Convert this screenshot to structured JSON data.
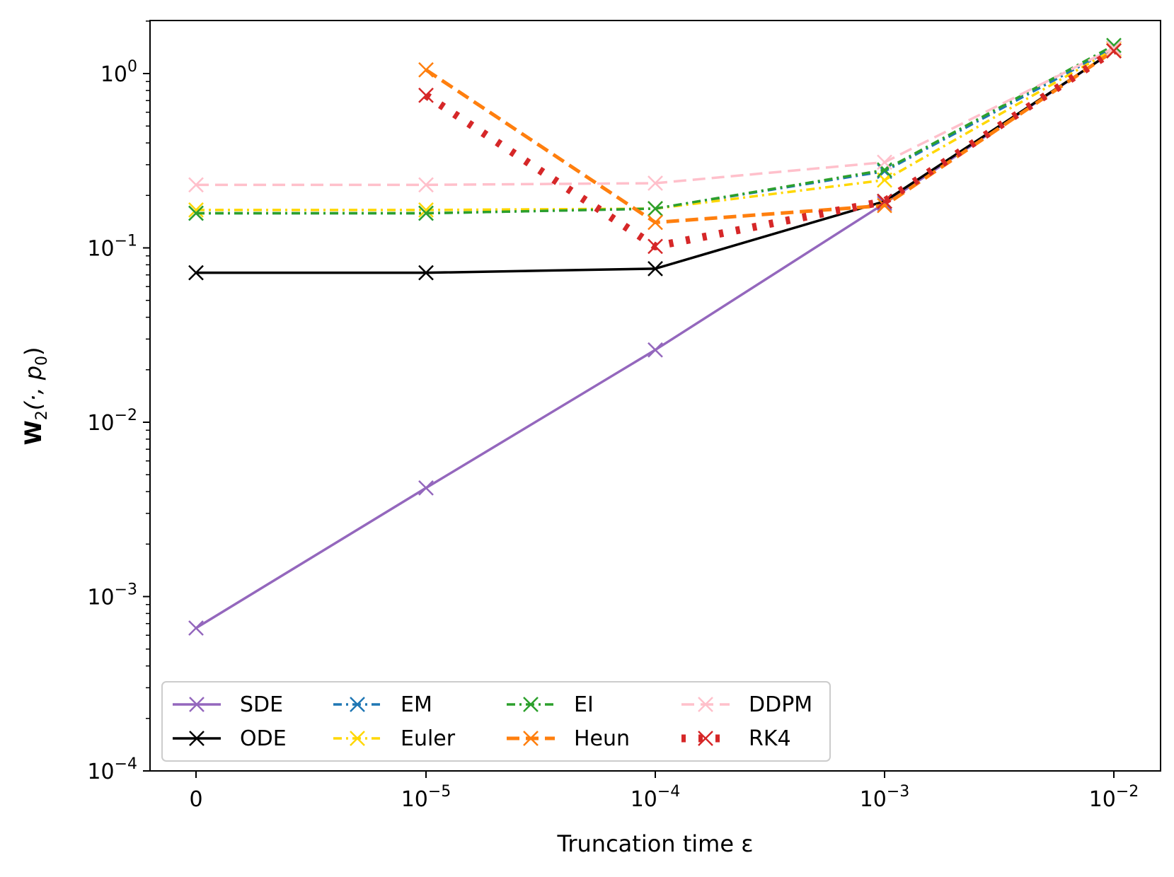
{
  "chart_data": {
    "type": "line",
    "title": "",
    "xlabel": "Truncation time ε",
    "ylabel_main": "W",
    "ylabel_sub": "2",
    "ylabel_args": "(·, p",
    "ylabel_args_sub": "0",
    "ylabel_close": ")",
    "x_scale": "categorical",
    "y_scale": "log",
    "ylim": [
      0.0001,
      2.0
    ],
    "x_ticks": [
      {
        "base": "0",
        "exp": ""
      },
      {
        "base": "10",
        "exp": "−5"
      },
      {
        "base": "10",
        "exp": "−4"
      },
      {
        "base": "10",
        "exp": "−3"
      },
      {
        "base": "10",
        "exp": "−2"
      }
    ],
    "y_ticks": [
      {
        "value": 1,
        "base": "10",
        "exp": "0"
      },
      {
        "value": 0.1,
        "base": "10",
        "exp": "−1"
      },
      {
        "value": 0.01,
        "base": "10",
        "exp": "−2"
      },
      {
        "value": 0.001,
        "base": "10",
        "exp": "−3"
      },
      {
        "value": 0.0001,
        "base": "10",
        "exp": "−4"
      }
    ],
    "legend_position": "lower-left",
    "legend_columns": 4,
    "series": [
      {
        "name": "SDE",
        "color": "#9467bd",
        "style": "solid",
        "x_index": [
          0,
          1,
          2,
          3,
          4
        ],
        "values": [
          0.00066,
          0.0042,
          0.026,
          0.18,
          1.35
        ]
      },
      {
        "name": "ODE",
        "color": "#000000",
        "style": "solid",
        "x_index": [
          0,
          1,
          2,
          3,
          4
        ],
        "values": [
          0.072,
          0.072,
          0.076,
          0.185,
          1.35
        ]
      },
      {
        "name": "EM",
        "color": "#1f77b4",
        "style": "dashdot",
        "x_index": [
          0,
          1,
          2,
          3,
          4
        ],
        "values": [
          0.158,
          0.158,
          0.168,
          0.275,
          1.4
        ]
      },
      {
        "name": "Euler",
        "color": "#ffd700",
        "style": "dashdot",
        "x_index": [
          0,
          1,
          2,
          3,
          4
        ],
        "values": [
          0.165,
          0.165,
          0.168,
          0.245,
          1.38
        ]
      },
      {
        "name": "EI",
        "color": "#2ca02c",
        "style": "dashdot",
        "x_index": [
          0,
          1,
          2,
          3,
          4
        ],
        "values": [
          0.158,
          0.158,
          0.168,
          0.28,
          1.45
        ]
      },
      {
        "name": "Heun",
        "color": "#ff7f0e",
        "style": "dashed",
        "x_index": [
          1,
          2,
          3,
          4
        ],
        "values": [
          1.05,
          0.14,
          0.175,
          1.35
        ]
      },
      {
        "name": "DDPM",
        "color": "#ffc0cb",
        "style": "dashed",
        "x_index": [
          0,
          1,
          2,
          3,
          4
        ],
        "values": [
          0.23,
          0.23,
          0.235,
          0.31,
          1.4
        ]
      },
      {
        "name": "RK4",
        "color": "#d62728",
        "style": "dotted",
        "x_index": [
          1,
          2,
          3,
          4
        ],
        "values": [
          0.75,
          0.102,
          0.185,
          1.35
        ]
      }
    ]
  }
}
